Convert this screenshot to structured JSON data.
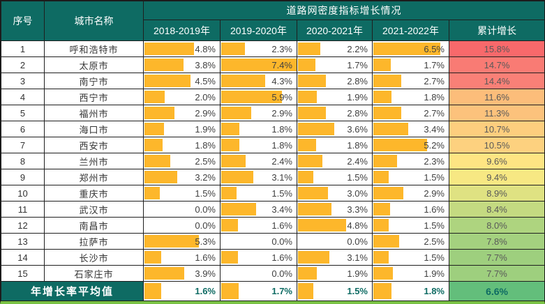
{
  "colors": {
    "header_bg": "#0E6B63",
    "header_text": "#FFFFFF",
    "databar": "#FDB72B",
    "grid_line": "#1F1F1F",
    "bottom_accent": "#79C143",
    "footer_value_text": "#0E6B63",
    "cumulative_scale": [
      "#F8696B",
      "#FFEB84",
      "#63BE7B"
    ]
  },
  "table": {
    "header": {
      "seq": "序号",
      "city": "城市名称",
      "title": "道路网密度指标增长情况",
      "years": [
        "2018-2019年",
        "2019-2020年",
        "2020-2021年",
        "2021-2022年"
      ],
      "cumulative": "累计增长"
    },
    "databar_max": 7.4,
    "rows": [
      {
        "seq": 1,
        "city": "呼和浩特市",
        "values": [
          4.8,
          2.3,
          2.2,
          6.5
        ],
        "cumulative": 15.8,
        "cumulative_color": "#F8696B"
      },
      {
        "seq": 2,
        "city": "太原市",
        "values": [
          3.8,
          7.4,
          1.7,
          1.7
        ],
        "cumulative": 14.7,
        "cumulative_color": "#F97B74"
      },
      {
        "seq": 3,
        "city": "南宁市",
        "values": [
          4.5,
          4.3,
          2.8,
          2.7
        ],
        "cumulative": 14.4,
        "cumulative_color": "#F98077"
      },
      {
        "seq": 4,
        "city": "西宁市",
        "values": [
          2.0,
          5.9,
          1.9,
          1.8
        ],
        "cumulative": 11.6,
        "cumulative_color": "#FCBD7A"
      },
      {
        "seq": 5,
        "city": "福州市",
        "values": [
          2.9,
          2.9,
          2.8,
          2.7
        ],
        "cumulative": 11.3,
        "cumulative_color": "#FCC27C"
      },
      {
        "seq": 6,
        "city": "海口市",
        "values": [
          1.9,
          1.8,
          3.6,
          3.4
        ],
        "cumulative": 10.7,
        "cumulative_color": "#FDCE7E"
      },
      {
        "seq": 7,
        "city": "西安市",
        "values": [
          1.8,
          1.8,
          1.8,
          5.2
        ],
        "cumulative": 10.5,
        "cumulative_color": "#FDD17F"
      },
      {
        "seq": 8,
        "city": "兰州市",
        "values": [
          2.5,
          2.4,
          2.4,
          2.3
        ],
        "cumulative": 9.6,
        "cumulative_color": "#FEE583"
      },
      {
        "seq": 9,
        "city": "郑州市",
        "values": [
          3.2,
          3.1,
          1.5,
          1.5
        ],
        "cumulative": 9.4,
        "cumulative_color": "#F7E883"
      },
      {
        "seq": 10,
        "city": "重庆市",
        "values": [
          1.5,
          1.5,
          3.0,
          2.9
        ],
        "cumulative": 8.9,
        "cumulative_color": "#DFE282"
      },
      {
        "seq": 11,
        "city": "武汉市",
        "values": [
          0.0,
          3.4,
          3.3,
          1.6
        ],
        "cumulative": 8.4,
        "cumulative_color": "#C4DA81"
      },
      {
        "seq": 12,
        "city": "南昌市",
        "values": [
          0.0,
          1.6,
          4.8,
          1.5
        ],
        "cumulative": 8.0,
        "cumulative_color": "#AED47F"
      },
      {
        "seq": 13,
        "city": "拉萨市",
        "values": [
          5.3,
          0.0,
          0.0,
          2.5
        ],
        "cumulative": 7.8,
        "cumulative_color": "#A4D17F"
      },
      {
        "seq": 14,
        "city": "长沙市",
        "values": [
          1.6,
          1.6,
          3.1,
          1.5
        ],
        "cumulative": 7.7,
        "cumulative_color": "#9ECF7E"
      },
      {
        "seq": 15,
        "city": "石家庄市",
        "values": [
          3.9,
          0.0,
          1.9,
          1.9
        ],
        "cumulative": 7.7,
        "cumulative_color": "#9ECF7E"
      }
    ],
    "footer": {
      "label": "年增长率平均值",
      "values": [
        1.6,
        1.7,
        1.5,
        1.8
      ],
      "cumulative": 6.6,
      "cumulative_color": "#63BE7B"
    }
  },
  "chart_data": {
    "type": "table",
    "title": "道路网密度指标增长情况",
    "unit": "%",
    "columns": [
      "序号",
      "城市名称",
      "2018-2019年",
      "2019-2020年",
      "2020-2021年",
      "2021-2022年",
      "累计增长"
    ],
    "rows": [
      [
        1,
        "呼和浩特市",
        4.8,
        2.3,
        2.2,
        6.5,
        15.8
      ],
      [
        2,
        "太原市",
        3.8,
        7.4,
        1.7,
        1.7,
        14.7
      ],
      [
        3,
        "南宁市",
        4.5,
        4.3,
        2.8,
        2.7,
        14.4
      ],
      [
        4,
        "西宁市",
        2.0,
        5.9,
        1.9,
        1.8,
        11.6
      ],
      [
        5,
        "福州市",
        2.9,
        2.9,
        2.8,
        2.7,
        11.3
      ],
      [
        6,
        "海口市",
        1.9,
        1.8,
        3.6,
        3.4,
        10.7
      ],
      [
        7,
        "西安市",
        1.8,
        1.8,
        1.8,
        5.2,
        10.5
      ],
      [
        8,
        "兰州市",
        2.5,
        2.4,
        2.4,
        2.3,
        9.6
      ],
      [
        9,
        "郑州市",
        3.2,
        3.1,
        1.5,
        1.5,
        9.4
      ],
      [
        10,
        "重庆市",
        1.5,
        1.5,
        3.0,
        2.9,
        8.9
      ],
      [
        11,
        "武汉市",
        0.0,
        3.4,
        3.3,
        1.6,
        8.4
      ],
      [
        12,
        "南昌市",
        0.0,
        1.6,
        4.8,
        1.5,
        8.0
      ],
      [
        13,
        "拉萨市",
        5.3,
        0.0,
        0.0,
        2.5,
        7.8
      ],
      [
        14,
        "长沙市",
        1.6,
        1.6,
        3.1,
        1.5,
        7.7
      ],
      [
        15,
        "石家庄市",
        3.9,
        0.0,
        1.9,
        1.9,
        7.7
      ]
    ],
    "footer_row": [
      "年增长率平均值",
      1.6,
      1.7,
      1.5,
      1.8,
      6.6
    ],
    "databar_columns": [
      "2018-2019年",
      "2019-2020年",
      "2020-2021年",
      "2021-2022年"
    ],
    "databar_max": 7.4,
    "databar_color": "#FDB72B",
    "conditional_format_column": "累计增长",
    "conditional_format_scale": {
      "high": "#F8696B",
      "mid": "#FFEB84",
      "low": "#63BE7B"
    }
  }
}
